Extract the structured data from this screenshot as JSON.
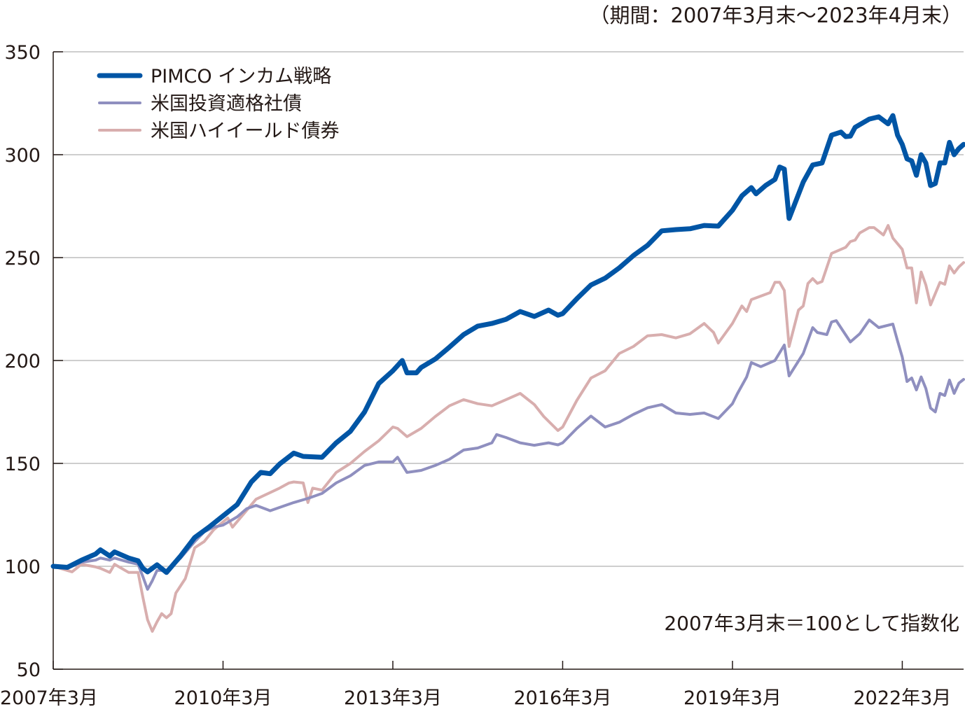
{
  "chart_data": {
    "type": "line",
    "period_note": "（期間：2007年3月末～2023年4月末）",
    "base_note": "2007年3月末＝100として指数化",
    "ylim": [
      50,
      350
    ],
    "yticks": [
      50,
      100,
      150,
      200,
      250,
      300,
      350
    ],
    "ytick_labels": [
      "50",
      "100",
      "150",
      "200",
      "250",
      "300",
      "350"
    ],
    "xlim": [
      "2007-03",
      "2023-04"
    ],
    "xticks": [
      "2007-03",
      "2010-03",
      "2013-03",
      "2016-03",
      "2019-03",
      "2022-03"
    ],
    "xtick_labels": [
      "2007年3月",
      "2010年3月",
      "2013年3月",
      "2016年3月",
      "2019年3月",
      "2022年3月"
    ],
    "grid": true,
    "legend_position": "top-left",
    "series": [
      {
        "name": "PIMCO インカム戦略",
        "color": "#0055a5",
        "points": [
          [
            "2007-03",
            100
          ],
          [
            "2007-06",
            99.5
          ],
          [
            "2007-09",
            103
          ],
          [
            "2007-12",
            106
          ],
          [
            "2008-01",
            108
          ],
          [
            "2008-03",
            105
          ],
          [
            "2008-04",
            107
          ],
          [
            "2008-07",
            104
          ],
          [
            "2008-09",
            102.7
          ],
          [
            "2008-10",
            99
          ],
          [
            "2008-11",
            97.3
          ],
          [
            "2009-01",
            100.7
          ],
          [
            "2009-03",
            97
          ],
          [
            "2009-06",
            105
          ],
          [
            "2009-09",
            114
          ],
          [
            "2009-12",
            119
          ],
          [
            "2010-03",
            124.5
          ],
          [
            "2010-06",
            130
          ],
          [
            "2010-09",
            141
          ],
          [
            "2010-11",
            145.6
          ],
          [
            "2011-01",
            145
          ],
          [
            "2011-03",
            149.7
          ],
          [
            "2011-06",
            155
          ],
          [
            "2011-08",
            153.4
          ],
          [
            "2011-12",
            153
          ],
          [
            "2012-03",
            160
          ],
          [
            "2012-06",
            165.6
          ],
          [
            "2012-09",
            175
          ],
          [
            "2012-12",
            188.8
          ],
          [
            "2013-03",
            195
          ],
          [
            "2013-05",
            200
          ],
          [
            "2013-06",
            194
          ],
          [
            "2013-08",
            194
          ],
          [
            "2013-09",
            196.6
          ],
          [
            "2013-12",
            200.7
          ],
          [
            "2014-03",
            206.5
          ],
          [
            "2014-06",
            212.6
          ],
          [
            "2014-09",
            216.7
          ],
          [
            "2014-12",
            218
          ],
          [
            "2015-03",
            220
          ],
          [
            "2015-06",
            223.8
          ],
          [
            "2015-09",
            221.4
          ],
          [
            "2015-12",
            224.5
          ],
          [
            "2016-02",
            222
          ],
          [
            "2016-03",
            222.8
          ],
          [
            "2016-06",
            230
          ],
          [
            "2016-09",
            236.7
          ],
          [
            "2016-12",
            240
          ],
          [
            "2017-03",
            245
          ],
          [
            "2017-06",
            251
          ],
          [
            "2017-09",
            256
          ],
          [
            "2017-12",
            263
          ],
          [
            "2018-03",
            263.6
          ],
          [
            "2018-06",
            264
          ],
          [
            "2018-09",
            265.6
          ],
          [
            "2018-12",
            265.3
          ],
          [
            "2019-03",
            273
          ],
          [
            "2019-05",
            280
          ],
          [
            "2019-07",
            284
          ],
          [
            "2019-08",
            281
          ],
          [
            "2019-10",
            285
          ],
          [
            "2019-12",
            288
          ],
          [
            "2020-01",
            294
          ],
          [
            "2020-02",
            293
          ],
          [
            "2020-03",
            269
          ],
          [
            "2020-06",
            286.7
          ],
          [
            "2020-08",
            295
          ],
          [
            "2020-10",
            296
          ],
          [
            "2020-12",
            309.5
          ],
          [
            "2021-02",
            311
          ],
          [
            "2021-03",
            308.8
          ],
          [
            "2021-04",
            309
          ],
          [
            "2021-05",
            313.3
          ],
          [
            "2021-08",
            317.3
          ],
          [
            "2021-10",
            318.4
          ],
          [
            "2021-12",
            315
          ],
          [
            "2022-01",
            319
          ],
          [
            "2022-02",
            309.5
          ],
          [
            "2022-03",
            305
          ],
          [
            "2022-04",
            298
          ],
          [
            "2022-05",
            297
          ],
          [
            "2022-06",
            290
          ],
          [
            "2022-07",
            300
          ],
          [
            "2022-08",
            296
          ],
          [
            "2022-09",
            285
          ],
          [
            "2022-10",
            286
          ],
          [
            "2022-11",
            296
          ],
          [
            "2022-12",
            296
          ],
          [
            "2023-01",
            306
          ],
          [
            "2023-02",
            300
          ],
          [
            "2023-03",
            303
          ],
          [
            "2023-04",
            305
          ]
        ]
      },
      {
        "name": "米国投資適格社債",
        "color": "#8f8fbf",
        "points": [
          [
            "2007-03",
            100
          ],
          [
            "2007-06",
            99
          ],
          [
            "2007-09",
            102
          ],
          [
            "2007-12",
            103
          ],
          [
            "2008-01",
            104
          ],
          [
            "2008-03",
            103
          ],
          [
            "2008-04",
            104
          ],
          [
            "2008-07",
            102
          ],
          [
            "2008-09",
            101
          ],
          [
            "2008-10",
            95
          ],
          [
            "2008-11",
            88.8
          ],
          [
            "2008-12",
            93
          ],
          [
            "2009-01",
            98
          ],
          [
            "2009-03",
            98
          ],
          [
            "2009-06",
            104
          ],
          [
            "2009-09",
            112
          ],
          [
            "2009-11",
            116.7
          ],
          [
            "2010-01",
            119
          ],
          [
            "2010-03",
            120
          ],
          [
            "2010-06",
            124
          ],
          [
            "2010-08",
            128
          ],
          [
            "2010-10",
            129.6
          ],
          [
            "2011-01",
            127
          ],
          [
            "2011-03",
            128.6
          ],
          [
            "2011-06",
            131
          ],
          [
            "2011-09",
            133
          ],
          [
            "2011-12",
            135.4
          ],
          [
            "2012-03",
            140.5
          ],
          [
            "2012-06",
            144
          ],
          [
            "2012-09",
            149
          ],
          [
            "2012-12",
            150.7
          ],
          [
            "2013-03",
            150.7
          ],
          [
            "2013-04",
            153
          ],
          [
            "2013-06",
            145.6
          ],
          [
            "2013-09",
            146.6
          ],
          [
            "2013-12",
            149
          ],
          [
            "2014-03",
            152
          ],
          [
            "2014-06",
            156.5
          ],
          [
            "2014-09",
            157.5
          ],
          [
            "2014-12",
            160
          ],
          [
            "2015-01",
            164
          ],
          [
            "2015-03",
            162.6
          ],
          [
            "2015-06",
            160
          ],
          [
            "2015-09",
            158.8
          ],
          [
            "2015-12",
            160
          ],
          [
            "2016-02",
            159
          ],
          [
            "2016-03",
            160
          ],
          [
            "2016-06",
            167
          ],
          [
            "2016-09",
            173
          ],
          [
            "2016-12",
            167.7
          ],
          [
            "2017-03",
            170
          ],
          [
            "2017-06",
            173.8
          ],
          [
            "2017-09",
            177
          ],
          [
            "2017-12",
            178.6
          ],
          [
            "2018-03",
            174.5
          ],
          [
            "2018-06",
            173.8
          ],
          [
            "2018-09",
            174.5
          ],
          [
            "2018-12",
            171.8
          ],
          [
            "2019-03",
            179
          ],
          [
            "2019-04",
            183.7
          ],
          [
            "2019-06",
            192
          ],
          [
            "2019-07",
            199
          ],
          [
            "2019-09",
            197
          ],
          [
            "2019-12",
            200
          ],
          [
            "2020-02",
            207.5
          ],
          [
            "2020-03",
            192.5
          ],
          [
            "2020-06",
            203.4
          ],
          [
            "2020-08",
            216
          ],
          [
            "2020-09",
            213.6
          ],
          [
            "2020-11",
            212.6
          ],
          [
            "2020-12",
            218.7
          ],
          [
            "2021-01",
            219.4
          ],
          [
            "2021-04",
            209
          ],
          [
            "2021-06",
            213
          ],
          [
            "2021-08",
            219.7
          ],
          [
            "2021-10",
            216
          ],
          [
            "2022-01",
            217.7
          ],
          [
            "2022-02",
            209.5
          ],
          [
            "2022-03",
            201.7
          ],
          [
            "2022-04",
            189.8
          ],
          [
            "2022-05",
            191.5
          ],
          [
            "2022-06",
            185.7
          ],
          [
            "2022-07",
            192
          ],
          [
            "2022-08",
            186.4
          ],
          [
            "2022-09",
            176.9
          ],
          [
            "2022-10",
            175
          ],
          [
            "2022-11",
            184
          ],
          [
            "2022-12",
            183
          ],
          [
            "2023-01",
            190.5
          ],
          [
            "2023-02",
            184
          ],
          [
            "2023-03",
            189
          ],
          [
            "2023-04",
            190.8
          ]
        ]
      },
      {
        "name": "米国ハイイールド債券",
        "color": "#d8aeae",
        "points": [
          [
            "2007-03",
            100
          ],
          [
            "2007-06",
            98
          ],
          [
            "2007-07",
            97.3
          ],
          [
            "2007-09",
            101
          ],
          [
            "2007-12",
            99.7
          ],
          [
            "2008-01",
            99
          ],
          [
            "2008-03",
            97
          ],
          [
            "2008-04",
            101
          ],
          [
            "2008-07",
            97
          ],
          [
            "2008-09",
            97
          ],
          [
            "2008-10",
            85
          ],
          [
            "2008-11",
            74
          ],
          [
            "2008-12",
            68.4
          ],
          [
            "2009-01",
            73
          ],
          [
            "2009-02",
            77
          ],
          [
            "2009-03",
            75
          ],
          [
            "2009-04",
            77
          ],
          [
            "2009-05",
            87
          ],
          [
            "2009-07",
            94
          ],
          [
            "2009-09",
            109
          ],
          [
            "2009-11",
            112
          ],
          [
            "2010-01",
            117.7
          ],
          [
            "2010-04",
            123.5
          ],
          [
            "2010-05",
            119
          ],
          [
            "2010-10",
            132.6
          ],
          [
            "2011-03",
            138
          ],
          [
            "2011-05",
            140.5
          ],
          [
            "2011-06",
            141
          ],
          [
            "2011-08",
            140.5
          ],
          [
            "2011-09",
            131
          ],
          [
            "2011-10",
            138
          ],
          [
            "2011-12",
            137
          ],
          [
            "2012-03",
            145.6
          ],
          [
            "2012-06",
            150
          ],
          [
            "2012-09",
            155.8
          ],
          [
            "2012-12",
            161
          ],
          [
            "2013-03",
            167.7
          ],
          [
            "2013-04",
            167
          ],
          [
            "2013-06",
            163
          ],
          [
            "2013-09",
            167
          ],
          [
            "2013-12",
            172.8
          ],
          [
            "2014-03",
            178
          ],
          [
            "2014-06",
            181
          ],
          [
            "2014-09",
            179
          ],
          [
            "2014-12",
            178
          ],
          [
            "2015-03",
            181
          ],
          [
            "2015-06",
            184
          ],
          [
            "2015-09",
            178.6
          ],
          [
            "2015-11",
            172.8
          ],
          [
            "2016-02",
            166
          ],
          [
            "2016-03",
            167.7
          ],
          [
            "2016-06",
            180.6
          ],
          [
            "2016-09",
            191.5
          ],
          [
            "2016-12",
            195
          ],
          [
            "2017-03",
            203.4
          ],
          [
            "2017-06",
            206.8
          ],
          [
            "2017-09",
            212
          ],
          [
            "2017-12",
            212.6
          ],
          [
            "2018-03",
            211
          ],
          [
            "2018-06",
            213
          ],
          [
            "2018-09",
            218
          ],
          [
            "2018-11",
            213.6
          ],
          [
            "2018-12",
            208.5
          ],
          [
            "2019-03",
            218
          ],
          [
            "2019-05",
            226.5
          ],
          [
            "2019-06",
            223.8
          ],
          [
            "2019-07",
            229.6
          ],
          [
            "2019-11",
            233
          ],
          [
            "2019-12",
            238
          ],
          [
            "2020-01",
            238
          ],
          [
            "2020-02",
            234
          ],
          [
            "2020-03",
            206.8
          ],
          [
            "2020-05",
            224.5
          ],
          [
            "2020-06",
            226.5
          ],
          [
            "2020-07",
            237.4
          ],
          [
            "2020-08",
            239.8
          ],
          [
            "2020-09",
            237.5
          ],
          [
            "2020-10",
            238.4
          ],
          [
            "2020-12",
            252
          ],
          [
            "2021-03",
            255
          ],
          [
            "2021-04",
            257.8
          ],
          [
            "2021-05",
            258.5
          ],
          [
            "2021-06",
            262
          ],
          [
            "2021-08",
            264.6
          ],
          [
            "2021-09",
            264.6
          ],
          [
            "2021-11",
            261
          ],
          [
            "2021-12",
            265.6
          ],
          [
            "2022-01",
            259.5
          ],
          [
            "2022-03",
            254
          ],
          [
            "2022-04",
            245
          ],
          [
            "2022-05",
            245
          ],
          [
            "2022-06",
            228
          ],
          [
            "2022-07",
            243
          ],
          [
            "2022-08",
            236.7
          ],
          [
            "2022-09",
            227
          ],
          [
            "2022-11",
            238
          ],
          [
            "2022-12",
            237
          ],
          [
            "2023-01",
            246
          ],
          [
            "2023-02",
            242.5
          ],
          [
            "2023-03",
            245.5
          ],
          [
            "2023-04",
            247.6
          ]
        ]
      }
    ]
  }
}
